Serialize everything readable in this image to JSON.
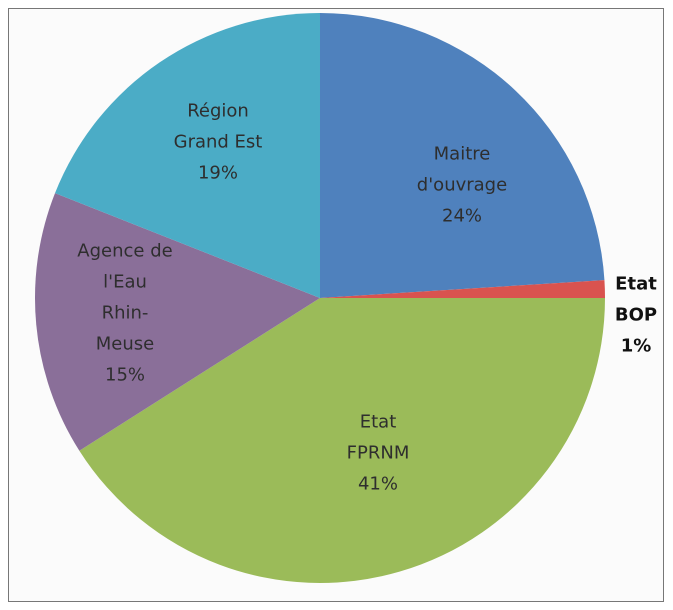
{
  "chart_data": {
    "type": "pie",
    "categories": [
      "Maitre\nd'ouvrage",
      "Etat\nBOP",
      "Etat\nFPRNM",
      "Agence de\nl'Eau\nRhin-\nMeuse",
      "Région\nGrand Est"
    ],
    "values": [
      24,
      1,
      41,
      15,
      19
    ],
    "value_labels": [
      "24%",
      "1%",
      "41%",
      "15%",
      "19%"
    ],
    "colors": [
      "#4f81bd",
      "#d9534f",
      "#9bbb59",
      "#8a6f99",
      "#4bacc6"
    ]
  }
}
